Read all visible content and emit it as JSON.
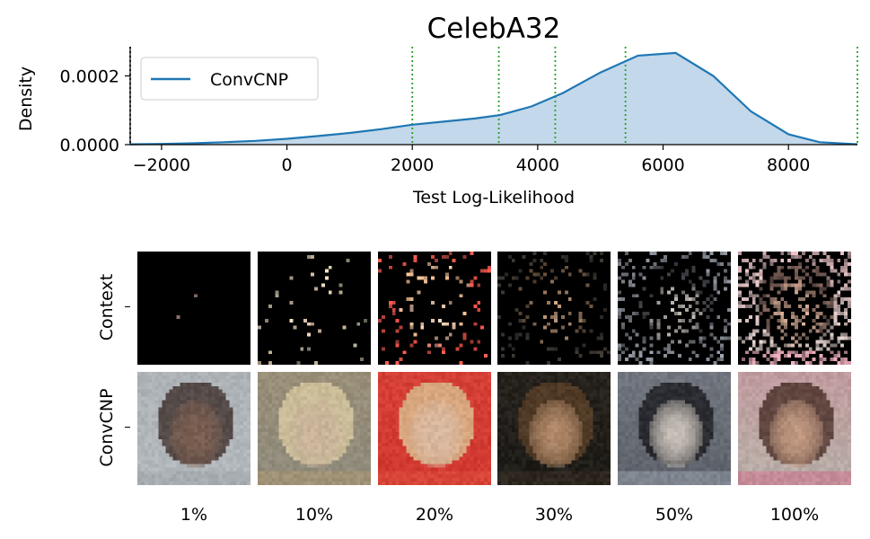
{
  "chart_data": {
    "type": "area",
    "title": "CelebA32",
    "xlabel": "Test Log-Likelihood",
    "ylabel": "Density",
    "xlim": [
      -2500,
      9100
    ],
    "ylim": [
      0,
      0.000285
    ],
    "xticks": [
      "−2000",
      "0",
      "2000",
      "4000",
      "6000",
      "8000"
    ],
    "xtick_values": [
      -2000,
      0,
      2000,
      4000,
      6000,
      8000
    ],
    "yticks": [
      "0.0000",
      "0.0002"
    ],
    "ytick_values": [
      0,
      0.0002
    ],
    "legend_placement": "top-left",
    "series": [
      {
        "name": "ConvCNP",
        "color": "#1f77b4",
        "fill": "#c3d8ea",
        "x": [
          -2500,
          -2000,
          -1500,
          -1000,
          -500,
          0,
          500,
          1000,
          1500,
          2000,
          2500,
          3000,
          3400,
          3900,
          4400,
          5000,
          5600,
          6200,
          6800,
          7400,
          8000,
          8500,
          9100
        ],
        "y": [
          1e-06,
          2e-06,
          4e-06,
          7e-06,
          1.1e-05,
          1.7e-05,
          2.5e-05,
          3.4e-05,
          4.5e-05,
          5.8e-05,
          6.7e-05,
          7.6e-05,
          8.6e-05,
          0.000111,
          0.00015,
          0.00021,
          0.000259,
          0.000267,
          0.0002,
          9.7e-05,
          3e-05,
          7e-06,
          1e-06
        ]
      }
    ],
    "vlines": [
      {
        "x": -2500,
        "color": "#222222",
        "style": "dotted"
      },
      {
        "x": 2000,
        "color": "#2ca02c",
        "style": "dotted"
      },
      {
        "x": 3380,
        "color": "#2ca02c",
        "style": "dotted"
      },
      {
        "x": 4280,
        "color": "#2ca02c",
        "style": "dotted"
      },
      {
        "x": 5400,
        "color": "#2ca02c",
        "style": "dotted"
      },
      {
        "x": 9100,
        "color": "#2ca02c",
        "style": "dotted"
      }
    ]
  },
  "grid": {
    "row_labels": [
      "Context",
      "ConvCNP"
    ],
    "column_labels": [
      "1%",
      "10%",
      "20%",
      "30%",
      "50%",
      "100%"
    ],
    "context_fractions": [
      0.01,
      0.1,
      0.2,
      0.3,
      0.5,
      1.0
    ],
    "prediction_palettes": [
      {
        "bg": "#b4b9bd",
        "face": "#7a5e50",
        "hair": "#3e302c",
        "accent": "#9aa0a4"
      },
      {
        "bg": "#8f8a7c",
        "face": "#c9b39a",
        "hair": "#d8c8a0",
        "accent": "#b09a70"
      },
      {
        "bg": "#d03830",
        "face": "#d8b8a0",
        "hair": "#d8c090",
        "accent": "#e05040"
      },
      {
        "bg": "#1e1c18",
        "face": "#b08868",
        "hair": "#5a4028",
        "accent": "#3a3026"
      },
      {
        "bg": "#5c6068",
        "face": "#c8c0b8",
        "hair": "#1c1c20",
        "accent": "#a0a8b4"
      },
      {
        "bg": "#b8b0a8",
        "face": "#c09880",
        "hair": "#4a3028",
        "accent": "#d06888"
      }
    ]
  }
}
